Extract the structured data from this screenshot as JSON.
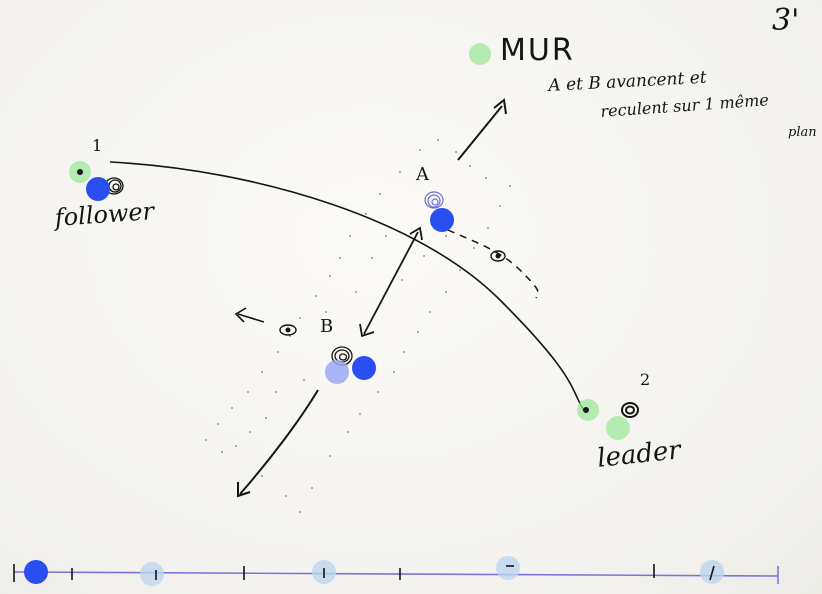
{
  "page": {
    "number": "3'"
  },
  "annotations": {
    "wall": "MUR",
    "note_line1": "A et B avancent et",
    "note_line2": "reculent sur 1 même",
    "note_line3": "plan"
  },
  "labels": {
    "one": "1",
    "two": "2",
    "follower": "follower",
    "leader": "leader",
    "a": "A",
    "b": "B"
  },
  "colors": {
    "paper": "#f7f6f2",
    "ink": "#151515",
    "blue_marker": "#2a4ff0",
    "blue_faded": "#9aa8f2",
    "green_marker": "#9ee89a",
    "timeline_line": "#7a74d8",
    "timeline_marker": "#bcd6ee"
  },
  "markers": [
    {
      "name": "green-marker-mur",
      "color": "green"
    },
    {
      "name": "green-marker-follower",
      "color": "green"
    },
    {
      "name": "blue-marker-follower",
      "color": "blue"
    },
    {
      "name": "blue-marker-a",
      "color": "blue"
    },
    {
      "name": "blue-marker-b",
      "color": "blue"
    },
    {
      "name": "faded-blue-marker-b",
      "color": "blue-faded"
    },
    {
      "name": "green-marker-leader-1",
      "color": "green"
    },
    {
      "name": "green-marker-leader-2",
      "color": "green"
    }
  ],
  "timeline": {
    "ticks": 9,
    "playhead_marker": "blue",
    "keyframe_markers": 5
  }
}
